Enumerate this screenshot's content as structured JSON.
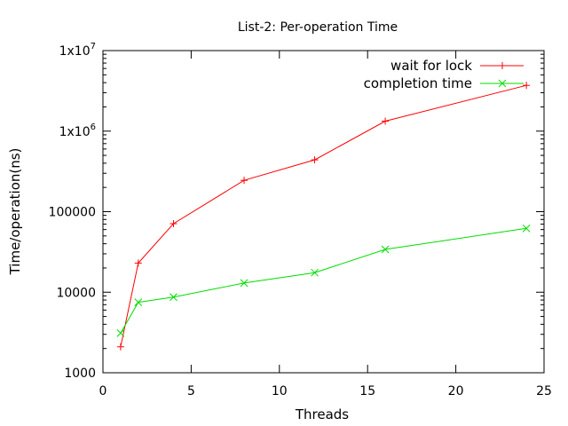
{
  "chart_data": {
    "type": "line",
    "title": "List-2: Per-operation Time",
    "xlabel": "Threads",
    "ylabel": "Time/operation(ns)",
    "x_scale": "linear",
    "y_scale": "log",
    "xlim": [
      0,
      25
    ],
    "ylim": [
      1000,
      10000000
    ],
    "x_ticks": [
      0,
      5,
      10,
      15,
      20,
      25
    ],
    "x_tick_labels": [
      "0",
      "5",
      "10",
      "15",
      "20",
      "25"
    ],
    "y_ticks": [
      1000,
      10000,
      100000,
      1000000,
      10000000
    ],
    "y_tick_labels": [
      "1000",
      "10000",
      "100000",
      "1x10^6",
      "1x10^7"
    ],
    "grid": false,
    "legend_position": "top-right",
    "series": [
      {
        "name": "wait for lock",
        "color": "#ff0000",
        "marker": "plus",
        "x": [
          1,
          2,
          4,
          8,
          12,
          16,
          24
        ],
        "y": [
          2100,
          23000,
          71000,
          245000,
          440000,
          1330000,
          3700000
        ]
      },
      {
        "name": "completion time",
        "color": "#00dd00",
        "marker": "cross",
        "x": [
          1,
          2,
          4,
          8,
          12,
          16,
          24
        ],
        "y": [
          3100,
          7500,
          8700,
          13000,
          17500,
          34000,
          62000
        ]
      }
    ]
  }
}
